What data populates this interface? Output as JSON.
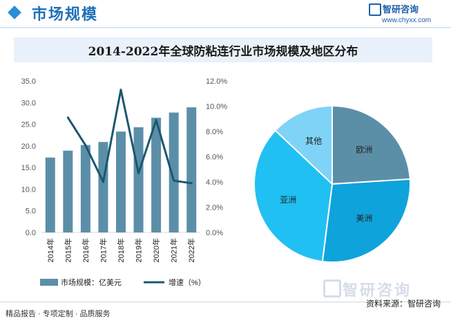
{
  "header": {
    "title": "市场规模",
    "brand_name": "智研咨询",
    "brand_url": "www.chyxx.com"
  },
  "watermark": {
    "text": "智研咨询"
  },
  "footer": {
    "left": "精品报告 · 专项定制 · 品质服务",
    "source": "资料来源：智研咨询"
  },
  "colors": {
    "accent": "#2a8fd6",
    "bar": "#5b8fa8",
    "line": "#1d5670",
    "europe": "#5b8fa8",
    "america": "#0fa3dc",
    "asia": "#20c0f2",
    "other": "#7fd3f6"
  },
  "chart_data": [
    {
      "type": "bar",
      "title": "2014-2022年全球防粘连行业市场规模及地区分布",
      "categories": [
        "2014年",
        "2015年",
        "2016年",
        "2017年",
        "2018年",
        "2019年",
        "2020年",
        "2021年",
        "2022年"
      ],
      "series": [
        {
          "name": "市场规模：亿美元",
          "type": "bar",
          "axis": "left",
          "values": [
            17.3,
            18.9,
            20.2,
            20.9,
            23.3,
            24.3,
            26.5,
            27.7,
            28.9
          ]
        },
        {
          "name": "增速（%）",
          "type": "line",
          "axis": "right",
          "values": [
            null,
            9.1,
            6.9,
            4.0,
            11.3,
            4.7,
            8.9,
            4.1,
            3.9
          ]
        }
      ],
      "ylim": [
        0,
        35
      ],
      "yticks": [
        "0.0",
        "5.0",
        "10.0",
        "15.0",
        "20.0",
        "25.0",
        "30.0",
        "35.0"
      ],
      "y2lim": [
        0,
        12
      ],
      "y2ticks": [
        "0.0%",
        "2.0%",
        "4.0%",
        "6.0%",
        "8.0%",
        "10.0%",
        "12.0%"
      ],
      "legend": "bottom"
    },
    {
      "type": "pie",
      "labels": [
        "欧洲",
        "美洲",
        "亚洲",
        "其他"
      ],
      "values": [
        24,
        28,
        35,
        13
      ]
    }
  ]
}
